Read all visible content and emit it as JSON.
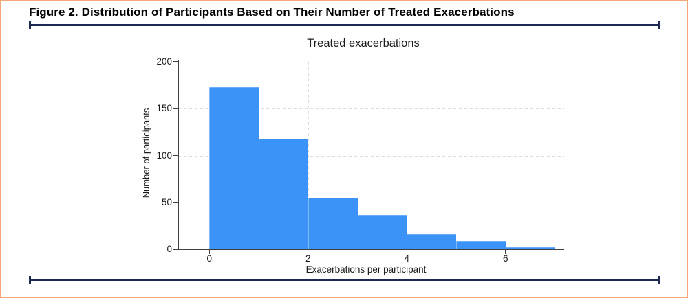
{
  "figure": {
    "title": "Figure 2. Distribution of Participants Based on Their Number of Treated Exacerbations"
  },
  "chart_data": {
    "type": "bar",
    "subtype": "histogram",
    "title": "Treated exacerbations",
    "xlabel": "Exacerbations per participant",
    "ylabel": "Number of participants",
    "bin_edges": [
      0,
      1,
      2,
      3,
      4,
      5,
      6,
      7
    ],
    "values": [
      173,
      118,
      55,
      37,
      16,
      9,
      2
    ],
    "x_ticks": [
      0,
      2,
      4,
      6
    ],
    "y_ticks": [
      0,
      50,
      100,
      150,
      200
    ],
    "xlim": [
      0,
      7.2
    ],
    "ylim": [
      0,
      200
    ],
    "grid": {
      "style": "dashed",
      "x_gridlines": [
        2,
        4,
        6
      ],
      "y_gridlines": [
        50,
        100,
        150,
        200
      ]
    },
    "legend": null
  },
  "colors": {
    "bar_fill": "#3b93f7",
    "accent_border": "#f4a576",
    "divider_navy": "#1c2a52",
    "axis": "#3f3f3f",
    "grid": "#dcdcdc",
    "text": "#1a1a1a"
  }
}
